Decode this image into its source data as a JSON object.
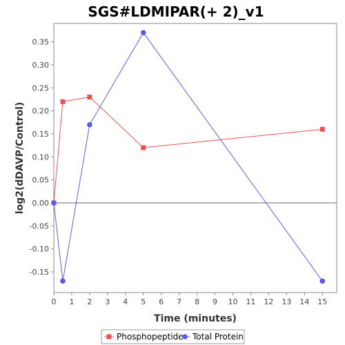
{
  "chart_data": {
    "type": "line",
    "title": "SGS#LDMIPAR(+ 2)_v1",
    "xlabel": "Time (minutes)",
    "ylabel": "log2(dDAVP/Control)",
    "xlim": [
      0,
      15.8
    ],
    "ylim": [
      -0.195,
      0.39
    ],
    "xticks": [
      0,
      1,
      2,
      3,
      4,
      5,
      6,
      7,
      8,
      9,
      10,
      11,
      12,
      13,
      14,
      15
    ],
    "yticks": [
      -0.15,
      -0.1,
      -0.05,
      0.0,
      0.05,
      0.1,
      0.15,
      0.2,
      0.25,
      0.3,
      0.35
    ],
    "yticks_labels": [
      "-0.15",
      "-0.10",
      "-0.05",
      "0.00",
      "0.05",
      "0.10",
      "0.15",
      "0.20",
      "0.25",
      "0.30",
      "0.35"
    ],
    "grid": false,
    "zero_line": true,
    "legend_position": "bottom",
    "series": [
      {
        "name": "Phosphopeptide",
        "color": "#e8534f",
        "marker": "square",
        "x": [
          0,
          0.5,
          2,
          5,
          15
        ],
        "y": [
          0.0,
          0.22,
          0.23,
          0.12,
          0.16
        ]
      },
      {
        "name": "Total Protein",
        "color": "#5b5be6",
        "marker": "circle",
        "x": [
          0,
          0.5,
          2,
          5,
          15
        ],
        "y": [
          0.0,
          -0.17,
          0.17,
          0.37,
          -0.17
        ]
      }
    ]
  }
}
